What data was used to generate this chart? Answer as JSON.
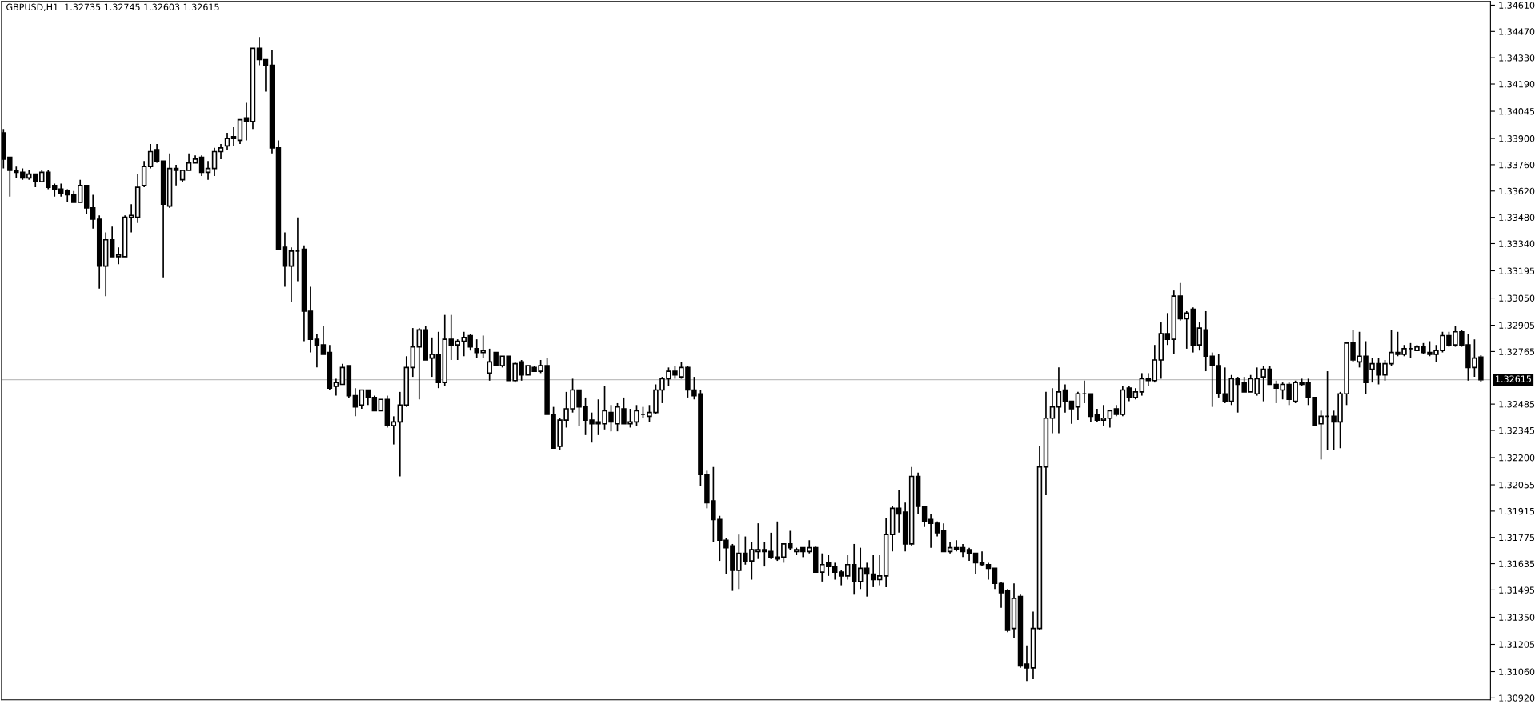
{
  "chart_data": {
    "type": "candlestick",
    "title": "GBPUSD,H1  1.32735 1.32745 1.32603 1.32615",
    "color": "#000000",
    "categories": [
      null,
      null,
      null,
      null,
      null,
      null,
      null,
      null,
      null,
      null,
      null,
      null,
      null,
      null,
      null,
      null,
      null,
      null,
      null,
      null,
      null,
      null,
      null,
      null,
      null,
      null,
      null,
      null,
      null,
      null,
      null,
      null,
      null,
      null,
      null,
      null,
      null,
      null,
      null,
      null,
      null,
      null,
      null,
      null,
      null,
      null,
      null,
      null,
      null,
      null,
      null,
      null,
      null,
      null,
      null,
      null,
      null,
      null,
      null,
      null,
      null,
      null,
      null,
      null,
      null,
      null,
      null,
      null,
      null,
      null,
      null,
      null,
      null,
      null,
      null,
      null,
      null,
      null,
      null,
      null,
      null,
      null,
      null,
      null,
      null,
      null,
      null,
      null,
      null,
      null,
      null,
      null,
      null,
      null,
      null,
      null,
      null,
      null,
      null,
      null,
      null,
      null,
      null,
      null,
      null,
      null,
      null,
      null,
      null,
      null,
      null,
      null,
      null,
      null,
      null,
      null,
      null,
      null,
      null,
      null,
      null,
      null,
      null,
      null,
      null,
      null,
      null,
      null,
      null,
      null,
      null,
      null,
      null,
      null,
      null,
      null,
      null,
      null,
      null,
      null,
      null,
      null,
      null,
      null,
      null,
      null,
      null,
      null,
      null,
      null,
      null,
      null,
      null,
      null,
      null,
      null,
      null,
      null,
      null,
      null,
      null,
      null,
      null,
      null,
      null,
      null,
      null,
      null,
      null,
      null,
      null,
      null,
      null,
      null,
      null,
      null,
      null,
      null,
      null,
      null,
      null,
      null,
      null,
      null,
      null,
      null,
      null,
      null,
      null,
      null,
      null,
      null,
      null,
      null,
      null,
      null,
      null,
      null,
      null,
      null,
      null,
      null,
      null,
      null,
      null,
      null,
      null,
      null,
      null,
      null,
      null,
      null,
      null,
      null,
      null,
      null,
      null,
      null,
      null,
      null,
      null,
      null,
      null,
      null,
      null,
      null,
      null,
      null,
      null,
      null,
      null,
      null
    ],
    "ohlc": [
      [
        1.3393,
        1.3395,
        1.3374,
        1.3379
      ],
      [
        1.338,
        1.338,
        1.3359,
        1.3373
      ],
      [
        1.3373,
        1.3375,
        1.3369,
        1.3372
      ],
      [
        1.3372,
        1.3374,
        1.3368,
        1.3369
      ],
      [
        1.3369,
        1.3373,
        1.3368,
        1.3371
      ],
      [
        1.3371,
        1.3371,
        1.3364,
        1.3367
      ],
      [
        1.3367,
        1.3373,
        1.3367,
        1.3372
      ],
      [
        1.3372,
        1.3373,
        1.3363,
        1.3364
      ],
      [
        1.3365,
        1.3366,
        1.3359,
        1.3363
      ],
      [
        1.3363,
        1.3366,
        1.3359,
        1.3361
      ],
      [
        1.3362,
        1.3363,
        1.3356,
        1.336
      ],
      [
        1.336,
        1.3362,
        1.3356,
        1.3356
      ],
      [
        1.3356,
        1.3368,
        1.3356,
        1.3365
      ],
      [
        1.3365,
        1.3365,
        1.335,
        1.3353
      ],
      [
        1.3353,
        1.336,
        1.3342,
        1.3347
      ],
      [
        1.3347,
        1.3349,
        1.331,
        1.3322
      ],
      [
        1.3322,
        1.334,
        1.3306,
        1.3336
      ],
      [
        1.3336,
        1.3343,
        1.3327,
        1.3327
      ],
      [
        1.3327,
        1.3332,
        1.3323,
        1.3328
      ],
      [
        1.3327,
        1.3349,
        1.3327,
        1.3348
      ],
      [
        1.3348,
        1.3355,
        1.334,
        1.3349
      ],
      [
        1.3348,
        1.3371,
        1.3345,
        1.3364
      ],
      [
        1.3365,
        1.3378,
        1.3364,
        1.3375
      ],
      [
        1.3375,
        1.3387,
        1.3374,
        1.3383
      ],
      [
        1.3384,
        1.3387,
        1.3377,
        1.3378
      ],
      [
        1.3378,
        1.3378,
        1.3316,
        1.3355
      ],
      [
        1.3354,
        1.3382,
        1.3353,
        1.3374
      ],
      [
        1.3374,
        1.3376,
        1.3365,
        1.3373
      ],
      [
        1.3368,
        1.3373,
        1.3367,
        1.3373
      ],
      [
        1.3373,
        1.3382,
        1.3373,
        1.3377
      ],
      [
        1.3377,
        1.3381,
        1.3377,
        1.3379
      ],
      [
        1.338,
        1.3381,
        1.337,
        1.3372
      ],
      [
        1.3372,
        1.3378,
        1.3368,
        1.3374
      ],
      [
        1.3374,
        1.3385,
        1.337,
        1.3383
      ],
      [
        1.3383,
        1.3387,
        1.3379,
        1.3385
      ],
      [
        1.3386,
        1.3393,
        1.3384,
        1.339
      ],
      [
        1.3391,
        1.3396,
        1.3386,
        1.339
      ],
      [
        1.3389,
        1.34,
        1.3387,
        1.34
      ],
      [
        1.3401,
        1.3409,
        1.3389,
        1.3399
      ],
      [
        1.3399,
        1.3438,
        1.3395,
        1.3438
      ],
      [
        1.3438,
        1.3444,
        1.3429,
        1.3432
      ],
      [
        1.3432,
        1.3432,
        1.3415,
        1.3429
      ],
      [
        1.3429,
        1.3437,
        1.3382,
        1.3385
      ],
      [
        1.3385,
        1.3389,
        1.3331,
        1.3331
      ],
      [
        1.3332,
        1.334,
        1.3311,
        1.3322
      ],
      [
        1.3322,
        1.3332,
        1.3303,
        1.333
      ],
      [
        1.333,
        1.3348,
        1.3314,
        1.333
      ],
      [
        1.3331,
        1.3333,
        1.3282,
        1.3298
      ],
      [
        1.3298,
        1.3311,
        1.3276,
        1.3283
      ],
      [
        1.3283,
        1.3286,
        1.3268,
        1.328
      ],
      [
        1.328,
        1.329,
        1.3275,
        1.3275
      ],
      [
        1.3276,
        1.328,
        1.3256,
        1.3257
      ],
      [
        1.3258,
        1.3262,
        1.3253,
        1.326
      ],
      [
        1.3259,
        1.327,
        1.3259,
        1.3268
      ],
      [
        1.3269,
        1.3269,
        1.3252,
        1.3253
      ],
      [
        1.3253,
        1.3257,
        1.3242,
        1.3247
      ],
      [
        1.3248,
        1.3256,
        1.3246,
        1.3256
      ],
      [
        1.3256,
        1.3256,
        1.3248,
        1.3252
      ],
      [
        1.3252,
        1.3253,
        1.3245,
        1.3245
      ],
      [
        1.3245,
        1.3251,
        1.3245,
        1.3251
      ],
      [
        1.3251,
        1.3253,
        1.3236,
        1.3237
      ],
      [
        1.3237,
        1.3242,
        1.3227,
        1.3239
      ],
      [
        1.3239,
        1.3255,
        1.321,
        1.3248
      ],
      [
        1.3248,
        1.3274,
        1.3247,
        1.3268
      ],
      [
        1.3268,
        1.3289,
        1.3263,
        1.3279
      ],
      [
        1.3279,
        1.3289,
        1.3251,
        1.3288
      ],
      [
        1.3288,
        1.329,
        1.3272,
        1.3272
      ],
      [
        1.3273,
        1.3284,
        1.3263,
        1.3275
      ],
      [
        1.3275,
        1.3287,
        1.3257,
        1.326
      ],
      [
        1.326,
        1.3296,
        1.3258,
        1.3283
      ],
      [
        1.3283,
        1.3296,
        1.3272,
        1.328
      ],
      [
        1.328,
        1.3283,
        1.3272,
        1.3282
      ],
      [
        1.3282,
        1.3287,
        1.3274,
        1.3284
      ],
      [
        1.3285,
        1.3286,
        1.3277,
        1.3279
      ],
      [
        1.3278,
        1.3283,
        1.3273,
        1.3276
      ],
      [
        1.3276,
        1.3285,
        1.3273,
        1.3277
      ],
      [
        1.3265,
        1.3278,
        1.3261,
        1.3271
      ],
      [
        1.3276,
        1.3276,
        1.3269,
        1.3269
      ],
      [
        1.3269,
        1.3274,
        1.3268,
        1.3274
      ],
      [
        1.3274,
        1.3274,
        1.3261,
        1.3261
      ],
      [
        1.3261,
        1.3271,
        1.326,
        1.327
      ],
      [
        1.3271,
        1.3272,
        1.3261,
        1.3264
      ],
      [
        1.3264,
        1.3269,
        1.3264,
        1.3269
      ],
      [
        1.3268,
        1.3269,
        1.3266,
        1.3266
      ],
      [
        1.3266,
        1.3272,
        1.3265,
        1.3269
      ],
      [
        1.3269,
        1.3273,
        1.3243,
        1.3243
      ],
      [
        1.3243,
        1.3247,
        1.3225,
        1.3225
      ],
      [
        1.3226,
        1.3241,
        1.3224,
        1.324
      ],
      [
        1.324,
        1.3255,
        1.3236,
        1.3246
      ],
      [
        1.3246,
        1.3262,
        1.3244,
        1.3256
      ],
      [
        1.3256,
        1.3256,
        1.3237,
        1.3247
      ],
      [
        1.3247,
        1.3252,
        1.3232,
        1.324
      ],
      [
        1.324,
        1.3244,
        1.3228,
        1.3238
      ],
      [
        1.3239,
        1.3251,
        1.3232,
        1.3238
      ],
      [
        1.3238,
        1.3258,
        1.3235,
        1.3245
      ],
      [
        1.3244,
        1.3248,
        1.3234,
        1.3239
      ],
      [
        1.3238,
        1.3249,
        1.3234,
        1.3247
      ],
      [
        1.3246,
        1.3252,
        1.3238,
        1.3238
      ],
      [
        1.3238,
        1.3246,
        1.3236,
        1.3239
      ],
      [
        1.3239,
        1.3248,
        1.3237,
        1.3245
      ],
      [
        1.3243,
        1.3247,
        1.3241,
        1.3243
      ],
      [
        1.3242,
        1.3248,
        1.3239,
        1.3244
      ],
      [
        1.3244,
        1.3259,
        1.3243,
        1.3256
      ],
      [
        1.3256,
        1.3263,
        1.3249,
        1.3262
      ],
      [
        1.3262,
        1.3268,
        1.3258,
        1.3266
      ],
      [
        1.3266,
        1.3269,
        1.3262,
        1.3264
      ],
      [
        1.3263,
        1.3271,
        1.3262,
        1.3268
      ],
      [
        1.3268,
        1.3269,
        1.3252,
        1.3256
      ],
      [
        1.3256,
        1.3263,
        1.3251,
        1.3253
      ],
      [
        1.3254,
        1.3256,
        1.3205,
        1.3211
      ],
      [
        1.3211,
        1.3213,
        1.3193,
        1.3196
      ],
      [
        1.3197,
        1.3215,
        1.3175,
        1.3187
      ],
      [
        1.3187,
        1.3189,
        1.3165,
        1.3176
      ],
      [
        1.3176,
        1.3177,
        1.3158,
        1.3172
      ],
      [
        1.3173,
        1.3174,
        1.3149,
        1.316
      ],
      [
        1.316,
        1.3179,
        1.315,
        1.3169
      ],
      [
        1.3169,
        1.3178,
        1.3163,
        1.3165
      ],
      [
        1.3165,
        1.3175,
        1.3155,
        1.3171
      ],
      [
        1.317,
        1.3185,
        1.3166,
        1.3171
      ],
      [
        1.3171,
        1.3175,
        1.3162,
        1.317
      ],
      [
        1.317,
        1.318,
        1.3166,
        1.3167
      ],
      [
        1.3167,
        1.3186,
        1.3165,
        1.3166
      ],
      [
        1.3167,
        1.3174,
        1.3164,
        1.3174
      ],
      [
        1.3174,
        1.3181,
        1.3171,
        1.3172
      ],
      [
        1.317,
        1.3172,
        1.3168,
        1.3171
      ],
      [
        1.3172,
        1.3172,
        1.3167,
        1.317
      ],
      [
        1.317,
        1.3176,
        1.3169,
        1.3172
      ],
      [
        1.3172,
        1.3173,
        1.3159,
        1.3159
      ],
      [
        1.3159,
        1.3169,
        1.3154,
        1.3163
      ],
      [
        1.3164,
        1.3168,
        1.3157,
        1.3162
      ],
      [
        1.3162,
        1.3164,
        1.3155,
        1.3159
      ],
      [
        1.3159,
        1.316,
        1.3152,
        1.3157
      ],
      [
        1.3157,
        1.3168,
        1.3155,
        1.3163
      ],
      [
        1.3163,
        1.3174,
        1.3147,
        1.3154
      ],
      [
        1.3154,
        1.3172,
        1.315,
        1.3161
      ],
      [
        1.3161,
        1.3164,
        1.3146,
        1.3158
      ],
      [
        1.3158,
        1.3168,
        1.3151,
        1.3155
      ],
      [
        1.3155,
        1.3168,
        1.3152,
        1.3157
      ],
      [
        1.3157,
        1.3188,
        1.3151,
        1.3179
      ],
      [
        1.3179,
        1.3194,
        1.317,
        1.3193
      ],
      [
        1.3193,
        1.3203,
        1.318,
        1.319
      ],
      [
        1.3191,
        1.3196,
        1.317,
        1.3174
      ],
      [
        1.3174,
        1.3215,
        1.3173,
        1.321
      ],
      [
        1.321,
        1.3212,
        1.319,
        1.3194
      ],
      [
        1.3194,
        1.3194,
        1.3183,
        1.3186
      ],
      [
        1.3187,
        1.319,
        1.3172,
        1.3185
      ],
      [
        1.3185,
        1.3186,
        1.3178,
        1.318
      ],
      [
        1.3181,
        1.3185,
        1.317,
        1.317
      ],
      [
        1.317,
        1.3175,
        1.3169,
        1.3172
      ],
      [
        1.3172,
        1.3176,
        1.317,
        1.3171
      ],
      [
        1.3172,
        1.3174,
        1.3167,
        1.317
      ],
      [
        1.3171,
        1.3172,
        1.3165,
        1.3169
      ],
      [
        1.3169,
        1.3169,
        1.3158,
        1.3164
      ],
      [
        1.3164,
        1.317,
        1.3162,
        1.3163
      ],
      [
        1.3163,
        1.3164,
        1.3155,
        1.3161
      ],
      [
        1.3161,
        1.3161,
        1.315,
        1.3153
      ],
      [
        1.3153,
        1.3154,
        1.314,
        1.3148
      ],
      [
        1.3149,
        1.315,
        1.3127,
        1.3128
      ],
      [
        1.3129,
        1.3153,
        1.3124,
        1.3145
      ],
      [
        1.3146,
        1.3147,
        1.3108,
        1.3109
      ],
      [
        1.311,
        1.312,
        1.3101,
        1.3108
      ],
      [
        1.3108,
        1.3138,
        1.3102,
        1.3129
      ],
      [
        1.3129,
        1.3226,
        1.3128,
        1.3215
      ],
      [
        1.3215,
        1.3255,
        1.32,
        1.3241
      ],
      [
        1.3241,
        1.3257,
        1.3233,
        1.3247
      ],
      [
        1.3247,
        1.3268,
        1.3233,
        1.3255
      ],
      [
        1.3256,
        1.3259,
        1.3244,
        1.325
      ],
      [
        1.325,
        1.325,
        1.3238,
        1.3246
      ],
      [
        1.3247,
        1.3255,
        1.324,
        1.3254
      ],
      [
        1.3254,
        1.3261,
        1.3249,
        1.3254
      ],
      [
        1.3254,
        1.3254,
        1.3239,
        1.3242
      ],
      [
        1.3243,
        1.3246,
        1.3239,
        1.324
      ],
      [
        1.324,
        1.3248,
        1.3237,
        1.3241
      ],
      [
        1.3241,
        1.3245,
        1.3236,
        1.3245
      ],
      [
        1.3246,
        1.3248,
        1.3242,
        1.3243
      ],
      [
        1.3243,
        1.3258,
        1.3242,
        1.3256
      ],
      [
        1.3257,
        1.3258,
        1.325,
        1.3252
      ],
      [
        1.3252,
        1.3257,
        1.3251,
        1.3255
      ],
      [
        1.3255,
        1.3265,
        1.3253,
        1.3262
      ],
      [
        1.3262,
        1.3265,
        1.3258,
        1.3261
      ],
      [
        1.3261,
        1.328,
        1.326,
        1.3272
      ],
      [
        1.3272,
        1.3292,
        1.3262,
        1.3286
      ],
      [
        1.3286,
        1.3297,
        1.328,
        1.3283
      ],
      [
        1.3283,
        1.3309,
        1.3275,
        1.3306
      ],
      [
        1.3306,
        1.3313,
        1.3293,
        1.3294
      ],
      [
        1.3294,
        1.3298,
        1.3278,
        1.3297
      ],
      [
        1.3299,
        1.33,
        1.3276,
        1.328
      ],
      [
        1.328,
        1.3292,
        1.3277,
        1.3289
      ],
      [
        1.3288,
        1.3298,
        1.3266,
        1.3274
      ],
      [
        1.3274,
        1.3276,
        1.3247,
        1.3269
      ],
      [
        1.3269,
        1.3275,
        1.3252,
        1.3254
      ],
      [
        1.3254,
        1.3268,
        1.3249,
        1.325
      ],
      [
        1.325,
        1.3264,
        1.3248,
        1.3262
      ],
      [
        1.3262,
        1.3263,
        1.3244,
        1.3259
      ],
      [
        1.326,
        1.3263,
        1.3255,
        1.3255
      ],
      [
        1.3255,
        1.3264,
        1.3255,
        1.3262
      ],
      [
        1.3254,
        1.3268,
        1.3253,
        1.3262
      ],
      [
        1.3263,
        1.3269,
        1.325,
        1.3267
      ],
      [
        1.3267,
        1.3269,
        1.3259,
        1.3259
      ],
      [
        1.3259,
        1.3261,
        1.3249,
        1.3257
      ],
      [
        1.3256,
        1.326,
        1.3251,
        1.3259
      ],
      [
        1.3259,
        1.326,
        1.3248,
        1.3251
      ],
      [
        1.325,
        1.3261,
        1.3249,
        1.326
      ],
      [
        1.326,
        1.3262,
        1.3258,
        1.3259
      ],
      [
        1.326,
        1.3262,
        1.3248,
        1.3252
      ],
      [
        1.3252,
        1.3252,
        1.3237,
        1.3237
      ],
      [
        1.3238,
        1.3245,
        1.3219,
        1.3242
      ],
      [
        1.3242,
        1.3266,
        1.3224,
        1.3242
      ],
      [
        1.3242,
        1.3245,
        1.3224,
        1.3239
      ],
      [
        1.3239,
        1.3255,
        1.3225,
        1.3254
      ],
      [
        1.3254,
        1.3281,
        1.3248,
        1.3281
      ],
      [
        1.3281,
        1.3288,
        1.3271,
        1.3272
      ],
      [
        1.3271,
        1.3287,
        1.3268,
        1.3274
      ],
      [
        1.3274,
        1.3282,
        1.3254,
        1.326
      ],
      [
        1.3267,
        1.3273,
        1.326,
        1.327
      ],
      [
        1.327,
        1.3273,
        1.3259,
        1.3264
      ],
      [
        1.3264,
        1.3272,
        1.3261,
        1.327
      ],
      [
        1.327,
        1.3288,
        1.3269,
        1.3276
      ],
      [
        1.3276,
        1.3287,
        1.3274,
        1.3275
      ],
      [
        1.3275,
        1.328,
        1.3274,
        1.3278
      ],
      [
        1.3278,
        1.3281,
        1.3273,
        1.3278
      ],
      [
        1.3277,
        1.328,
        1.3277,
        1.3279
      ],
      [
        1.3279,
        1.3281,
        1.3275,
        1.3276
      ],
      [
        1.3276,
        1.3282,
        1.3274,
        1.3275
      ],
      [
        1.3275,
        1.328,
        1.3271,
        1.3277
      ],
      [
        1.3277,
        1.3287,
        1.3276,
        1.3285
      ],
      [
        1.3285,
        1.3287,
        1.3279,
        1.328
      ],
      [
        1.328,
        1.329,
        1.3279,
        1.3287
      ],
      [
        1.3287,
        1.3288,
        1.3279,
        1.328
      ],
      [
        1.328,
        1.3286,
        1.3261,
        1.3268
      ],
      [
        1.3268,
        1.3283,
        1.3263,
        1.3273
      ],
      [
        1.32735,
        1.32745,
        1.32603,
        1.32615
      ]
    ],
    "ylim": [
      1.3091,
      1.3463
    ],
    "yticks": [
      {
        "value": 1.3092,
        "label": "1.30920"
      },
      {
        "value": 1.3106,
        "label": "1.31060"
      },
      {
        "value": 1.31205,
        "label": "1.31205"
      },
      {
        "value": 1.3135,
        "label": "1.31350"
      },
      {
        "value": 1.31495,
        "label": "1.31495"
      },
      {
        "value": 1.31635,
        "label": "1.31635"
      },
      {
        "value": 1.31775,
        "label": "1.31775"
      },
      {
        "value": 1.31915,
        "label": "1.31915"
      },
      {
        "value": 1.32055,
        "label": "1.32055"
      },
      {
        "value": 1.322,
        "label": "1.32200"
      },
      {
        "value": 1.32345,
        "label": "1.32345"
      },
      {
        "value": 1.32485,
        "label": "1.32485"
      },
      {
        "value": 1.32765,
        "label": "1.32765"
      },
      {
        "value": 1.32905,
        "label": "1.32905"
      },
      {
        "value": 1.3305,
        "label": "1.33050"
      },
      {
        "value": 1.33195,
        "label": "1.33195"
      },
      {
        "value": 1.3334,
        "label": "1.33340"
      },
      {
        "value": 1.3348,
        "label": "1.33480"
      },
      {
        "value": 1.3362,
        "label": "1.33620"
      },
      {
        "value": 1.3376,
        "label": "1.33760"
      },
      {
        "value": 1.339,
        "label": "1.33900"
      },
      {
        "value": 1.34045,
        "label": "1.34045"
      },
      {
        "value": 1.3419,
        "label": "1.34190"
      },
      {
        "value": 1.3433,
        "label": "1.34330"
      },
      {
        "value": 1.3447,
        "label": "1.34470"
      },
      {
        "value": 1.3461,
        "label": "1.34610"
      }
    ],
    "ref_lines": [
      {
        "axis": "y",
        "value": 1.32615,
        "label": "1.32615",
        "color": "#c0c0c0"
      }
    ]
  }
}
